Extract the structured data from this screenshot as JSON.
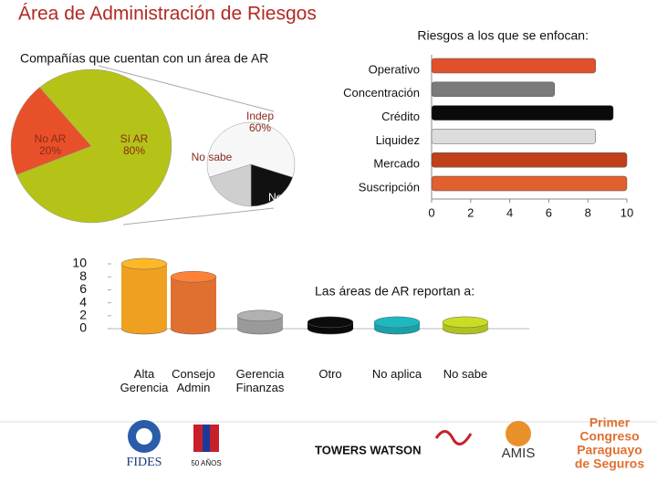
{
  "title": "Área de Administración de Riesgos",
  "chart_data": [
    {
      "type": "pie",
      "title": "Compañías que cuentan con un área de AR",
      "categories": [
        "No AR",
        "Sí AR"
      ],
      "values": [
        20,
        80
      ],
      "value_labels": [
        "20%",
        "80%"
      ],
      "colors": [
        "#e8502a",
        "#b5c318"
      ]
    },
    {
      "type": "pie",
      "categories": [
        "Indep",
        "No indep",
        "No sabe"
      ],
      "values": [
        60,
        20,
        20
      ],
      "value_labels": [
        "60%",
        null,
        null
      ],
      "colors": [
        "#f7f7f7",
        "#111111",
        "#cfcfcf"
      ]
    },
    {
      "type": "hbar",
      "title": "Riesgos a los que se enfocan:",
      "categories": [
        "Operativo",
        "Concentración",
        "Crédito",
        "Liquidez",
        "Mercado",
        "Suscripción"
      ],
      "values": [
        8.4,
        6.3,
        9.3,
        8.4,
        10,
        10
      ],
      "colors": [
        "#e0502a",
        "#7a7a7a",
        "#0a0a0a",
        "#dcdcdc",
        "#c0401a",
        "#e06030"
      ],
      "xlim": [
        0,
        10
      ],
      "xticks": [
        0,
        2,
        4,
        6,
        8,
        10
      ]
    },
    {
      "type": "column3d",
      "title": "Las áreas de AR reportan a:",
      "categories": [
        "Alta Gerencia",
        "Consejo Admin",
        "Gerencia Finanzas",
        "Otro",
        "No aplica",
        "No sabe"
      ],
      "values": [
        10,
        8,
        2,
        1,
        1,
        1
      ],
      "colors": [
        "#f0a020",
        "#e07030",
        "#9a9a9a",
        "#0a0a0a",
        "#1aa0a8",
        "#b0c020"
      ],
      "ylim": [
        0,
        10
      ],
      "yticks": [
        0,
        2,
        4,
        6,
        8,
        10
      ]
    }
  ],
  "logos": [
    "FIDES",
    "50 AÑOS",
    "TOWERS WATSON",
    "AMIS",
    [
      "Primer",
      "Congreso",
      "Paraguayo",
      "de Seguros"
    ]
  ]
}
